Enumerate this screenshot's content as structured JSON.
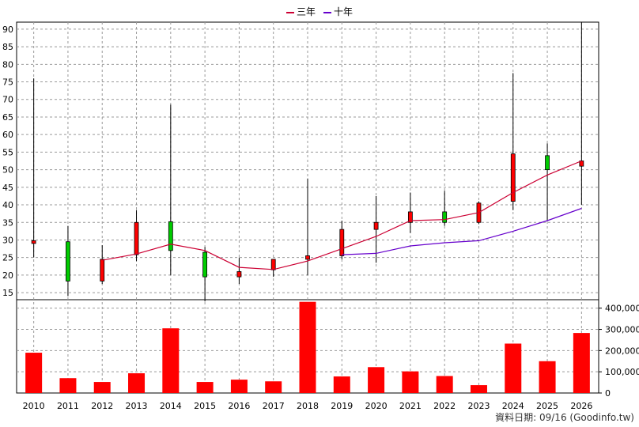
{
  "chart_data": {
    "type": "candlestick",
    "categories": [
      "2010",
      "2011",
      "2012",
      "2013",
      "2014",
      "2015",
      "2016",
      "2017",
      "2018",
      "2019",
      "2020",
      "2021",
      "2022",
      "2023",
      "2024",
      "2025",
      "2026"
    ],
    "price_axis": {
      "ylim": [
        13,
        92
      ],
      "ticks": [
        15,
        20,
        25,
        30,
        35,
        40,
        45,
        50,
        55,
        60,
        65,
        70,
        75,
        80,
        85,
        90
      ]
    },
    "volume_axis": {
      "ylim": [
        0,
        440000
      ],
      "ticks": [
        0,
        100000,
        200000,
        300000,
        400000
      ],
      "tick_labels": [
        "0",
        "100,000",
        "200,000",
        "300,000",
        "400,000"
      ]
    },
    "candles": [
      {
        "x": "2010",
        "open": 29.0,
        "close": 29.8,
        "high": 76.0,
        "low": 25.0,
        "color": "red"
      },
      {
        "x": "2011",
        "open": 29.5,
        "close": 18.3,
        "high": 34.0,
        "low": 14.0,
        "color": "green"
      },
      {
        "x": "2012",
        "open": 18.3,
        "close": 24.5,
        "high": 28.5,
        "low": 17.5,
        "color": "red"
      },
      {
        "x": "2013",
        "open": 25.8,
        "close": 35.0,
        "high": 38.5,
        "low": 24.0,
        "color": "red"
      },
      {
        "x": "2014",
        "open": 35.2,
        "close": 27.0,
        "high": 68.5,
        "low": 20.0,
        "color": "green"
      },
      {
        "x": "2015",
        "open": 26.5,
        "close": 19.5,
        "high": 28.0,
        "low": 12.5,
        "color": "green"
      },
      {
        "x": "2016",
        "open": 19.5,
        "close": 21.0,
        "high": 25.0,
        "low": 17.5,
        "color": "red"
      },
      {
        "x": "2017",
        "open": 21.5,
        "close": 24.5,
        "high": 24.5,
        "low": 19.5,
        "color": "red"
      },
      {
        "x": "2018",
        "open": 24.5,
        "close": 25.5,
        "high": 47.5,
        "low": 20.0,
        "color": "red"
      },
      {
        "x": "2019",
        "open": 25.5,
        "close": 33.0,
        "high": 35.5,
        "low": 24.5,
        "color": "red"
      },
      {
        "x": "2020",
        "open": 33.0,
        "close": 35.0,
        "high": 42.5,
        "low": 23.5,
        "color": "red"
      },
      {
        "x": "2021",
        "open": 35.0,
        "close": 38.0,
        "high": 43.5,
        "low": 32.0,
        "color": "red"
      },
      {
        "x": "2022",
        "open": 38.0,
        "close": 35.0,
        "high": 44.0,
        "low": 34.0,
        "color": "green"
      },
      {
        "x": "2023",
        "open": 35.0,
        "close": 40.5,
        "high": 41.0,
        "low": 34.5,
        "color": "red"
      },
      {
        "x": "2024",
        "open": 41.0,
        "close": 54.5,
        "high": 77.5,
        "low": 38.5,
        "color": "red"
      },
      {
        "x": "2025",
        "open": 54.0,
        "close": 50.0,
        "high": 57.5,
        "low": 35.5,
        "color": "green"
      },
      {
        "x": "2026",
        "open": 51.0,
        "close": 52.5,
        "high": 92.0,
        "low": 40.0,
        "color": "red"
      }
    ],
    "volume": [
      190000,
      70000,
      52000,
      93000,
      305000,
      52000,
      63000,
      55000,
      430000,
      78000,
      122000,
      102000,
      80000,
      37000,
      233000,
      150000,
      283000
    ],
    "series": [
      {
        "name": "三年",
        "color": "#cc0033",
        "x": [
          "2012",
          "2013",
          "2014",
          "2015",
          "2016",
          "2017",
          "2018",
          "2019",
          "2020",
          "2021",
          "2022",
          "2023",
          "2024",
          "2025",
          "2026"
        ],
        "values": [
          24.2,
          26.0,
          28.8,
          27.0,
          22.2,
          21.6,
          24.0,
          27.5,
          31.0,
          35.5,
          35.8,
          37.8,
          43.5,
          48.5,
          52.5
        ]
      },
      {
        "name": "十年",
        "color": "#6600cc",
        "x": [
          "2019",
          "2020",
          "2021",
          "2022",
          "2023",
          "2024",
          "2025",
          "2026"
        ],
        "values": [
          25.8,
          26.2,
          28.3,
          29.2,
          29.8,
          32.5,
          35.5,
          39.0
        ]
      }
    ],
    "grid": true,
    "legend_position": "top-center",
    "colors": {
      "up": "#ff0000",
      "down": "#00cc00",
      "volume": "#ff0000",
      "grid": "#999999"
    }
  },
  "source_label": "資料日期: 09/16  (Goodinfo.tw)"
}
